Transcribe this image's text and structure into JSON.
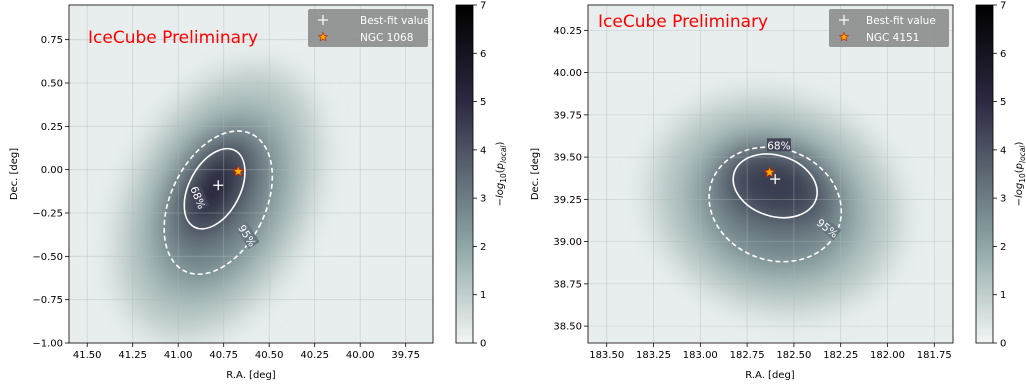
{
  "colors": {
    "preliminary_text": "#ff0000",
    "contour": "#ffffff",
    "legend_bg": "#8c8c8c",
    "star_fill": "#ffb000",
    "star_edge": "#cc2200",
    "cmap_low": "#f2f6f5",
    "cmap_mid": "#8aa3a3",
    "cmap_high": "#2b2740",
    "cmap_top": "#000000"
  },
  "chart_data": [
    {
      "type": "heatmap",
      "id": "left",
      "overlay_text": "IceCube Preliminary",
      "xlabel": "R.A. [deg]",
      "ylabel": "Dec. [deg]",
      "xlim": [
        41.6,
        39.6
      ],
      "ylim": [
        -1.0,
        0.95
      ],
      "x_ticks": [
        41.5,
        41.25,
        41.0,
        40.75,
        40.5,
        40.25,
        40.0,
        39.75
      ],
      "x_tick_labels": [
        "41.50",
        "41.25",
        "41.00",
        "40.75",
        "40.50",
        "40.25",
        "40.00",
        "39.75"
      ],
      "y_ticks": [
        -1.0,
        -0.75,
        -0.5,
        -0.25,
        0.0,
        0.25,
        0.5,
        0.75
      ],
      "y_tick_labels": [
        "−1.00",
        "−0.75",
        "−0.50",
        "−0.25",
        "0.00",
        "0.25",
        "0.50",
        "0.75"
      ],
      "grid": true,
      "legend_location": "top-right",
      "legend": [
        {
          "marker": "plus",
          "label": "Best-fit value"
        },
        {
          "marker": "star",
          "label": "NGC 1068"
        }
      ],
      "best_fit": {
        "x": 40.78,
        "y": -0.09
      },
      "source": {
        "x": 40.67,
        "y": -0.01
      },
      "contours": [
        {
          "label": "68%",
          "style": "solid",
          "center": [
            40.8,
            -0.11
          ],
          "semi_axes": [
            0.14,
            0.25
          ],
          "rotation_deg": 28
        },
        {
          "label": "95%",
          "style": "dashed",
          "center": [
            40.78,
            -0.19
          ],
          "semi_axes": [
            0.26,
            0.44
          ],
          "rotation_deg": 26
        }
      ],
      "heatmap_peak": {
        "center": [
          40.75,
          -0.05
        ],
        "value": 5.2
      },
      "colorbar": {
        "label": "−log10(p_local)",
        "range": [
          0,
          7
        ],
        "ticks": [
          0,
          1,
          2,
          3,
          4,
          5,
          6,
          7
        ],
        "tick_labels": [
          "0",
          "1",
          "2",
          "3",
          "4",
          "5",
          "6",
          "7"
        ]
      }
    },
    {
      "type": "heatmap",
      "id": "right",
      "overlay_text": "IceCube Preliminary",
      "xlabel": "R.A. [deg]",
      "ylabel": "Dec. [deg]",
      "xlim": [
        183.6,
        181.65
      ],
      "ylim": [
        38.4,
        40.4
      ],
      "x_ticks": [
        183.5,
        183.25,
        183.0,
        182.75,
        182.5,
        182.25,
        182.0,
        181.75
      ],
      "x_tick_labels": [
        "183.50",
        "183.25",
        "183.00",
        "182.75",
        "182.50",
        "182.25",
        "182.00",
        "181.75"
      ],
      "y_ticks": [
        38.5,
        38.75,
        39.0,
        39.25,
        39.5,
        39.75,
        40.0,
        40.25
      ],
      "y_tick_labels": [
        "38.50",
        "38.75",
        "39.00",
        "39.25",
        "39.50",
        "39.75",
        "40.00",
        "40.25"
      ],
      "grid": true,
      "legend_location": "top-right",
      "legend": [
        {
          "marker": "plus",
          "label": "Best-fit value"
        },
        {
          "marker": "star",
          "label": "NGC 4151"
        }
      ],
      "best_fit": {
        "x": 182.6,
        "y": 39.37
      },
      "source": {
        "x": 182.63,
        "y": 39.41
      },
      "contours": [
        {
          "label": "68%",
          "style": "solid",
          "center": [
            182.6,
            39.33
          ],
          "semi_axes": [
            0.23,
            0.18
          ],
          "rotation_deg": 18
        },
        {
          "label": "95%",
          "style": "dashed",
          "center": [
            182.6,
            39.22
          ],
          "semi_axes": [
            0.36,
            0.33
          ],
          "rotation_deg": 20
        }
      ],
      "heatmap_peak": {
        "center": [
          182.62,
          39.28
        ],
        "value": 4.6
      },
      "colorbar": {
        "label": "−log10(p_local)",
        "range": [
          0,
          7
        ],
        "ticks": [
          0,
          1,
          2,
          3,
          4,
          5,
          6,
          7
        ],
        "tick_labels": [
          "0",
          "1",
          "2",
          "3",
          "4",
          "5",
          "6",
          "7"
        ]
      }
    }
  ]
}
